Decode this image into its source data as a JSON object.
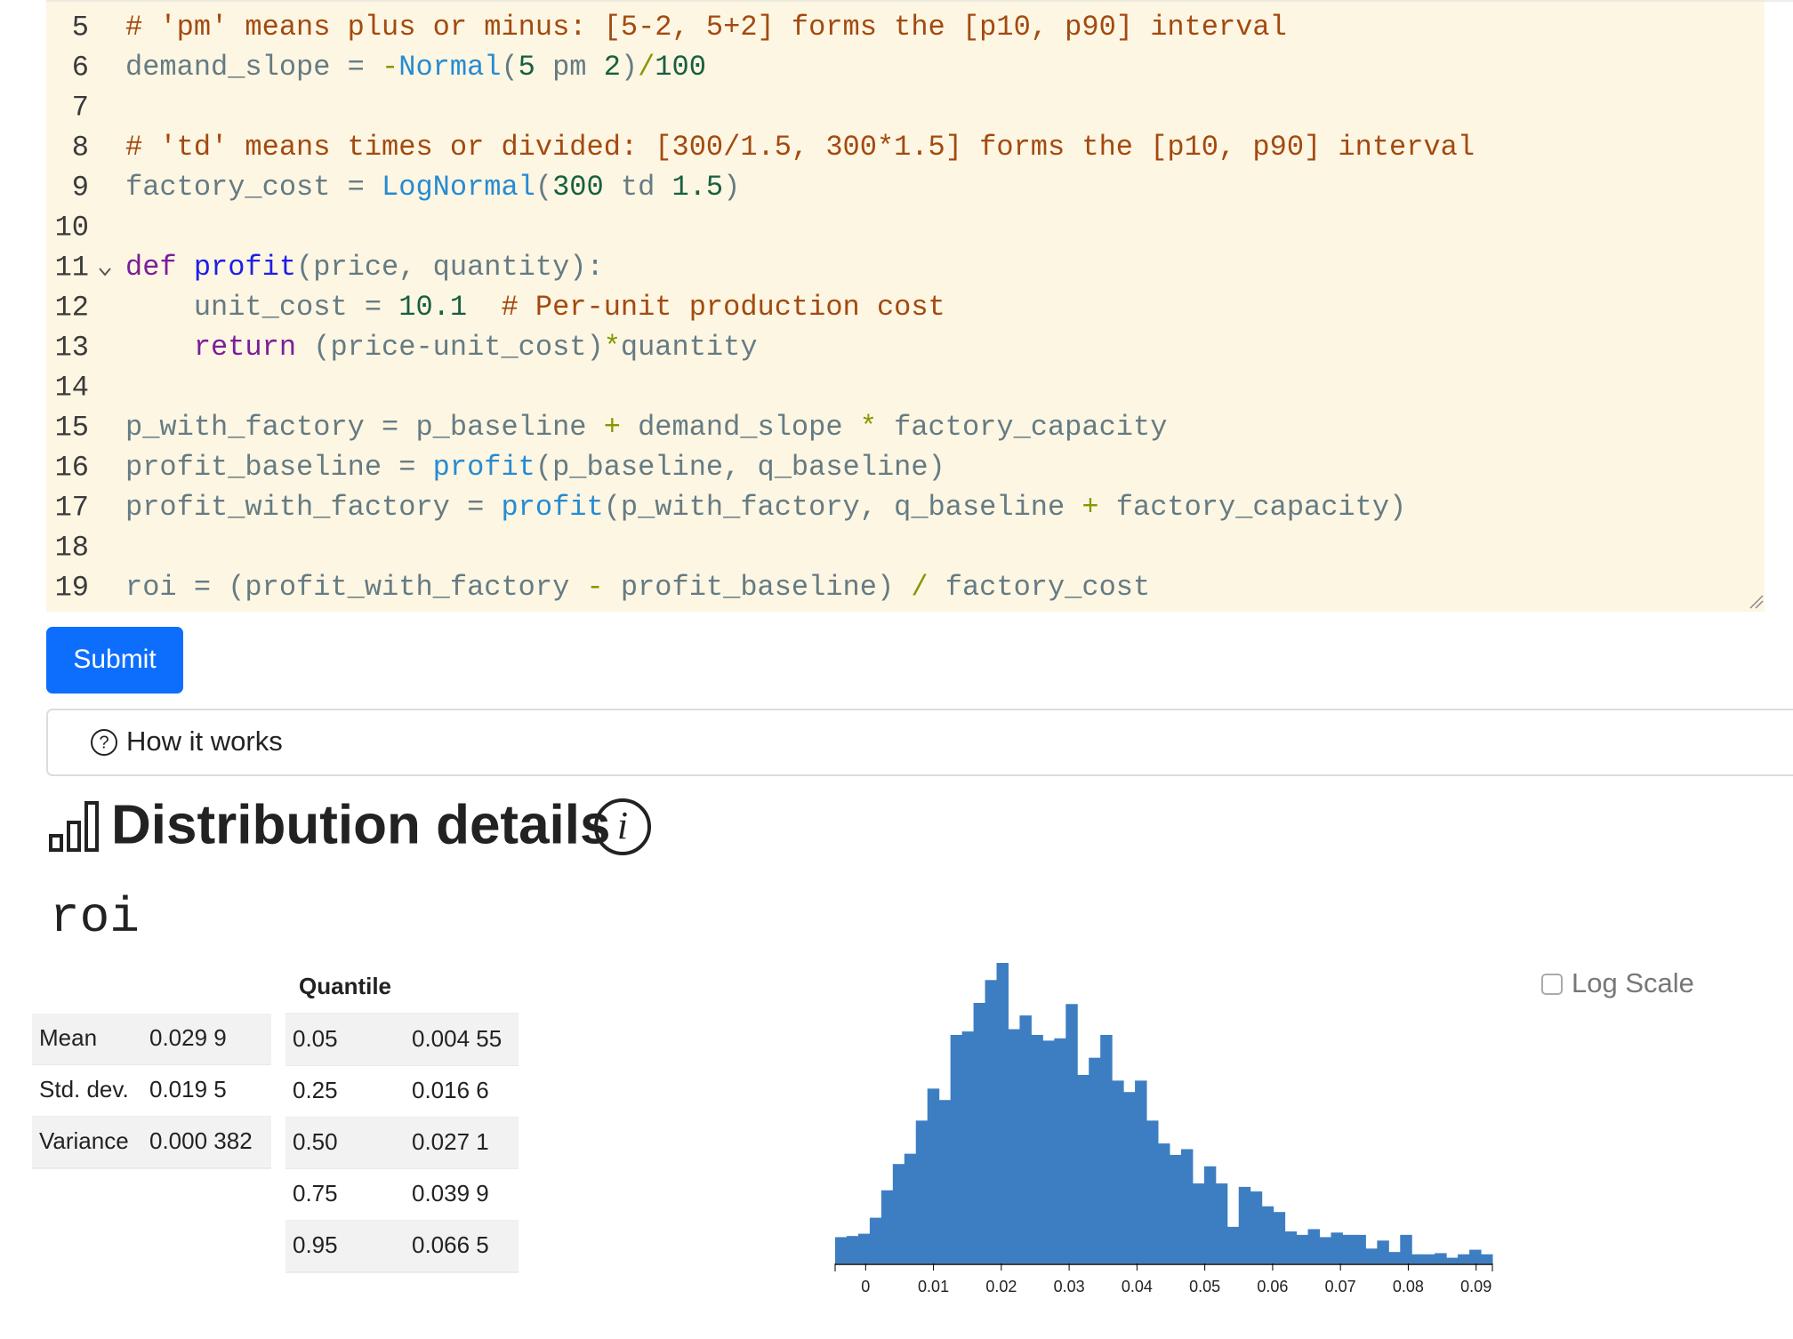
{
  "code": {
    "background": "#fdf6e3",
    "lines": [
      {
        "number": 5,
        "tokens": [
          {
            "text": "# 'pm' means plus or minus: [5-2, 5+2] forms the [p10, p90] interval",
            "color": "#a34a10"
          }
        ]
      },
      {
        "number": 6,
        "tokens": [
          {
            "text": "demand_slope = ",
            "color": "#657b83"
          },
          {
            "text": "-",
            "color": "#859900"
          },
          {
            "text": "Normal",
            "color": "#268bd2"
          },
          {
            "text": "(",
            "color": "#657b83"
          },
          {
            "text": "5",
            "color": "#17603f"
          },
          {
            "text": " pm ",
            "color": "#657b83"
          },
          {
            "text": "2",
            "color": "#17603f"
          },
          {
            "text": ")",
            "color": "#657b83"
          },
          {
            "text": "/",
            "color": "#859900"
          },
          {
            "text": "100",
            "color": "#17603f"
          }
        ]
      },
      {
        "number": 7,
        "tokens": []
      },
      {
        "number": 8,
        "tokens": [
          {
            "text": "# 'td' means times or divided: [300/1.5, 300*1.5] forms the [p10, p90] interval",
            "color": "#a34a10"
          }
        ]
      },
      {
        "number": 9,
        "tokens": [
          {
            "text": "factory_cost = ",
            "color": "#657b83"
          },
          {
            "text": "LogNormal",
            "color": "#268bd2"
          },
          {
            "text": "(",
            "color": "#657b83"
          },
          {
            "text": "300",
            "color": "#17603f"
          },
          {
            "text": " td ",
            "color": "#657b83"
          },
          {
            "text": "1.5",
            "color": "#17603f"
          },
          {
            "text": ")",
            "color": "#657b83"
          }
        ]
      },
      {
        "number": 10,
        "tokens": []
      },
      {
        "number": 11,
        "tokens": [
          {
            "text": "def",
            "color": "#7a1f9a"
          },
          {
            "text": " ",
            "color": "#657b83"
          },
          {
            "text": "profit",
            "color": "#1f1fe6"
          },
          {
            "text": "(price, quantity):",
            "color": "#657b83"
          }
        ]
      },
      {
        "number": 12,
        "tokens": [
          {
            "text": "    unit_cost = ",
            "color": "#657b83"
          },
          {
            "text": "10.1",
            "color": "#17603f"
          },
          {
            "text": "  # Per-unit production cost",
            "color": "#a34a10"
          }
        ]
      },
      {
        "number": 13,
        "tokens": [
          {
            "text": "    ",
            "color": "#657b83"
          },
          {
            "text": "return",
            "color": "#7a1f9a"
          },
          {
            "text": " (price-unit_cost)",
            "color": "#657b83"
          },
          {
            "text": "*",
            "color": "#859900"
          },
          {
            "text": "quantity",
            "color": "#657b83"
          }
        ]
      },
      {
        "number": 14,
        "tokens": []
      },
      {
        "number": 15,
        "tokens": [
          {
            "text": "p_with_factory = p_baseline ",
            "color": "#657b83"
          },
          {
            "text": "+",
            "color": "#859900"
          },
          {
            "text": " demand_slope ",
            "color": "#657b83"
          },
          {
            "text": "*",
            "color": "#859900"
          },
          {
            "text": " factory_capacity",
            "color": "#657b83"
          }
        ]
      },
      {
        "number": 16,
        "tokens": [
          {
            "text": "profit_baseline = ",
            "color": "#657b83"
          },
          {
            "text": "profit",
            "color": "#268bd2"
          },
          {
            "text": "(p_baseline, q_baseline)",
            "color": "#657b83"
          }
        ]
      },
      {
        "number": 17,
        "tokens": [
          {
            "text": "profit_with_factory = ",
            "color": "#657b83"
          },
          {
            "text": "profit",
            "color": "#268bd2"
          },
          {
            "text": "(p_with_factory, q_baseline ",
            "color": "#657b83"
          },
          {
            "text": "+",
            "color": "#859900"
          },
          {
            "text": " factory_capacity)",
            "color": "#657b83"
          }
        ]
      },
      {
        "number": 18,
        "tokens": []
      },
      {
        "number": 19,
        "tokens": [
          {
            "text": "roi = (profit_with_factory ",
            "color": "#657b83"
          },
          {
            "text": "-",
            "color": "#859900"
          },
          {
            "text": " profit_baseline) ",
            "color": "#657b83"
          },
          {
            "text": "/",
            "color": "#859900"
          },
          {
            "text": " factory_cost",
            "color": "#657b83"
          }
        ]
      }
    ]
  },
  "submit": "Submit",
  "how_it_works": "How it works",
  "heading": "Distribution details",
  "variable": "roi",
  "stats_table": {
    "rows": [
      [
        "Mean",
        "0.029 9"
      ],
      [
        "Std. dev.",
        "0.019 5"
      ],
      [
        "Variance",
        "0.000 382"
      ]
    ]
  },
  "quantile_table": {
    "header": "Quantile",
    "rows": [
      [
        "0.05",
        "0.004 55"
      ],
      [
        "0.25",
        "0.016 6"
      ],
      [
        "0.50",
        "0.027 1"
      ],
      [
        "0.75",
        "0.039 9"
      ],
      [
        "0.95",
        "0.066 5"
      ]
    ]
  },
  "log_scale": "Log Scale",
  "chart_data": {
    "type": "histogram",
    "color": "#3d7ec3",
    "bins": [
      -0.0045,
      -0.0028,
      -0.0011,
      0.0006,
      0.0023,
      0.004,
      0.0057,
      0.0074,
      0.0091,
      0.0108,
      0.0125,
      0.0142,
      0.0159,
      0.0176,
      0.0193,
      0.021,
      0.0227,
      0.0244,
      0.0261,
      0.0278,
      0.0295,
      0.0312,
      0.0329,
      0.0346,
      0.0363,
      0.038,
      0.0397,
      0.0414,
      0.0431,
      0.0448,
      0.0465,
      0.0482,
      0.0499,
      0.0516,
      0.0533,
      0.055,
      0.0567,
      0.0584,
      0.0601,
      0.0618,
      0.0635,
      0.0652,
      0.0669,
      0.0686,
      0.0703,
      0.072,
      0.0737,
      0.0754,
      0.0771,
      0.0788,
      0.0805,
      0.0822,
      0.0839,
      0.0856,
      0.0873,
      0.089,
      0.0907,
      0.0924
    ],
    "values": [
      23,
      24,
      26,
      40,
      64,
      87,
      96,
      125,
      153,
      143,
      200,
      203,
      228,
      248,
      263,
      205,
      217,
      200,
      195,
      197,
      227,
      165,
      180,
      200,
      160,
      150,
      160,
      125,
      105,
      95,
      100,
      70,
      85,
      70,
      32,
      67,
      63,
      50,
      45,
      28,
      25,
      30,
      23,
      27,
      25,
      25,
      13,
      20,
      10,
      25,
      8,
      8,
      9,
      5,
      8,
      12,
      8
    ],
    "xlim": [
      -0.0045,
      0.0924
    ],
    "xticks": [
      0,
      0.01,
      0.02,
      0.03,
      0.04,
      0.05,
      0.06,
      0.07,
      0.08,
      0.09
    ]
  }
}
